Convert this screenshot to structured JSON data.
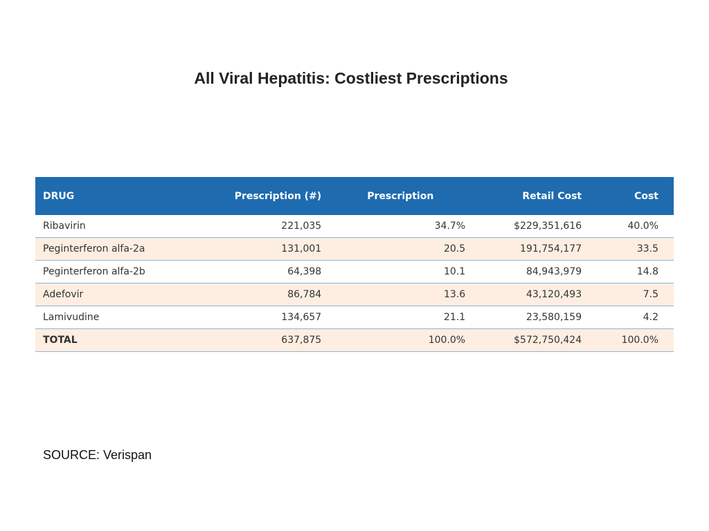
{
  "title": "All Viral Hepatitis:  Costliest Prescriptions",
  "table": {
    "headers": {
      "drug": "DRUG",
      "prescription_count": "Prescription (#)",
      "prescription_pct": "Prescription",
      "retail_cost": "Retail Cost",
      "cost_pct": "Cost"
    },
    "rows": [
      {
        "drug": "Ribavirin",
        "prescription_count": "221,035",
        "prescription_pct": "34.7%",
        "retail_cost": "$229,351,616",
        "cost_pct": "40.0%"
      },
      {
        "drug": "Peginterferon alfa-2a",
        "prescription_count": "131,001",
        "prescription_pct": "20.5",
        "retail_cost": "191,754,177",
        "cost_pct": "33.5"
      },
      {
        "drug": "Peginterferon alfa-2b",
        "prescription_count": "64,398",
        "prescription_pct": "10.1",
        "retail_cost": "84,943,979",
        "cost_pct": "14.8"
      },
      {
        "drug": "Adefovir",
        "prescription_count": "86,784",
        "prescription_pct": "13.6",
        "retail_cost": "43,120,493",
        "cost_pct": "7.5"
      },
      {
        "drug": "Lamivudine",
        "prescription_count": "134,657",
        "prescription_pct": "21.1",
        "retail_cost": "23,580,159",
        "cost_pct": "4.2"
      }
    ],
    "total": {
      "drug": "TOTAL",
      "prescription_count": "637,875",
      "prescription_pct": "100.0%",
      "retail_cost": "$572,750,424",
      "cost_pct": "100.0%"
    }
  },
  "source": "SOURCE:  Verispan",
  "colors": {
    "header_bg": "#1f6bb0",
    "header_text": "#ffffff",
    "alt_row_bg": "#fdeee1",
    "row_border": "#8fb3cf"
  }
}
